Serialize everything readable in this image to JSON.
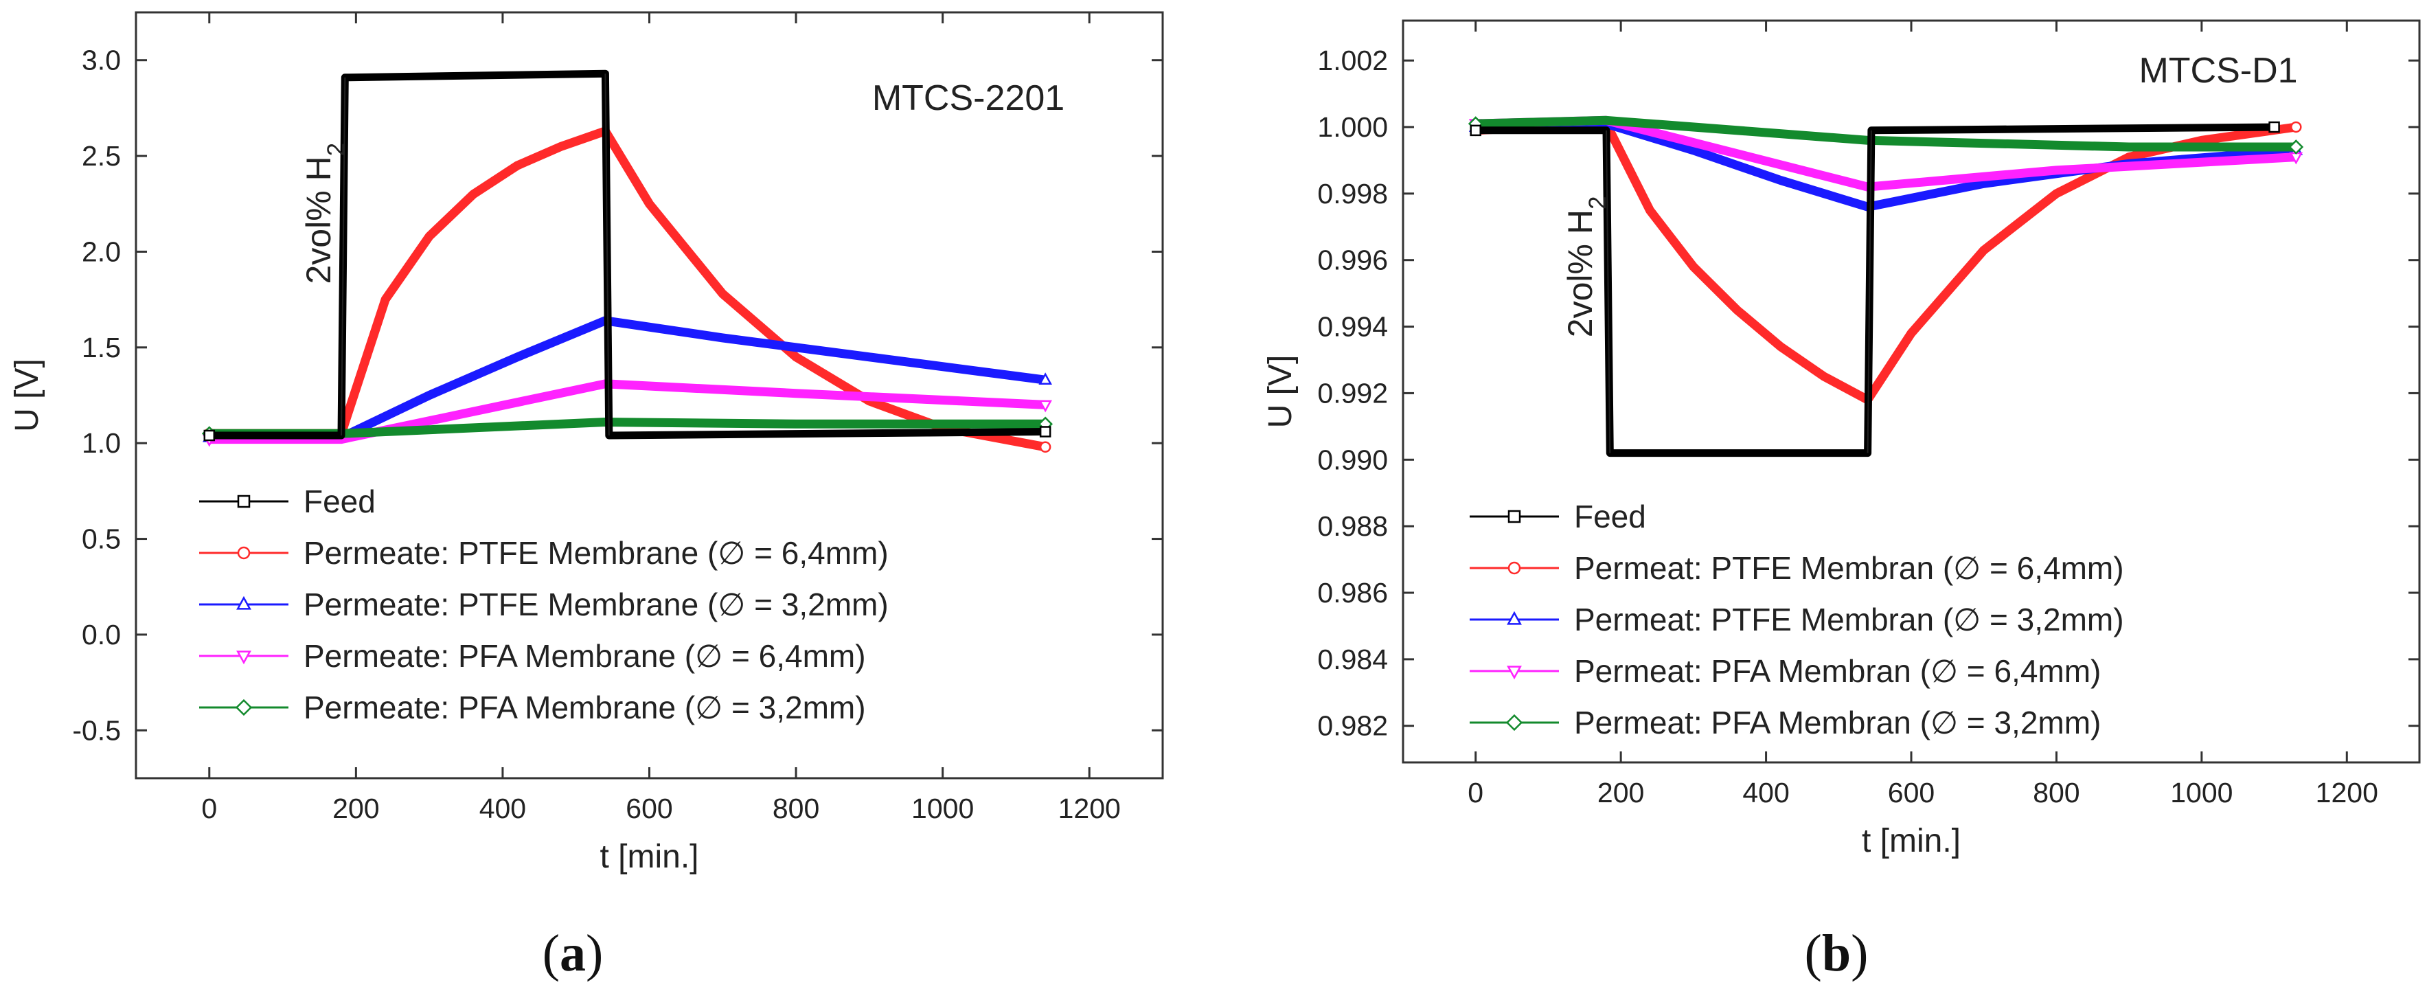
{
  "chart_data": [
    {
      "type": "line",
      "title": "MTCS-2201",
      "xlabel": "t [min.]",
      "ylabel": "U [V]",
      "xlim": [
        -100,
        1300
      ],
      "ylim": [
        -0.75,
        3.25
      ],
      "xticks": [
        0,
        200,
        400,
        600,
        800,
        1000,
        1200
      ],
      "yticks": [
        -0.5,
        0.0,
        0.5,
        1.0,
        1.5,
        2.0,
        2.5,
        3.0
      ],
      "ytick_decimals": 1,
      "annotation": {
        "text": "2vol% H",
        "subscript": "2",
        "x": 165,
        "y": 2.2
      },
      "caption": "a",
      "legend": {
        "position": "bottom-left"
      },
      "series": [
        {
          "name": "Feed",
          "color": "#000000",
          "marker": "square",
          "x": [
            0,
            180,
            185,
            540,
            545,
            1140
          ],
          "y": [
            1.04,
            1.04,
            2.91,
            2.93,
            1.04,
            1.06
          ]
        },
        {
          "name": "Permeate: PTFE Membrane (∅ = 6,4mm)",
          "color": "#ff2a2a",
          "marker": "circle",
          "x": [
            0,
            180,
            240,
            300,
            360,
            420,
            480,
            540,
            600,
            700,
            800,
            900,
            1000,
            1140
          ],
          "y": [
            1.05,
            1.05,
            1.75,
            2.08,
            2.3,
            2.45,
            2.55,
            2.63,
            2.25,
            1.78,
            1.45,
            1.22,
            1.08,
            0.98
          ]
        },
        {
          "name": "Permeate: PTFE Membrane (∅ = 3,2mm)",
          "color": "#1a1aff",
          "marker": "triangle-up",
          "x": [
            0,
            180,
            300,
            420,
            540,
            700,
            900,
            1140
          ],
          "y": [
            1.03,
            1.03,
            1.25,
            1.45,
            1.64,
            1.55,
            1.45,
            1.33
          ]
        },
        {
          "name": "Permeate: PFA Membrane (∅ = 6,4mm)",
          "color": "#ff22ff",
          "marker": "triangle-down",
          "x": [
            0,
            180,
            540,
            800,
            1140
          ],
          "y": [
            1.02,
            1.02,
            1.31,
            1.26,
            1.2
          ]
        },
        {
          "name": "Permeate: PFA Membrane (∅ = 3,2mm)",
          "color": "#138a2d",
          "marker": "diamond",
          "x": [
            0,
            180,
            540,
            800,
            1140
          ],
          "y": [
            1.05,
            1.05,
            1.11,
            1.1,
            1.1
          ]
        }
      ]
    },
    {
      "type": "line",
      "title": "MTCS-D1",
      "xlabel": "t [min.]",
      "ylabel": "U [V]",
      "xlim": [
        -100,
        1300
      ],
      "ylim": [
        0.9809,
        1.0032
      ],
      "xticks": [
        0,
        200,
        400,
        600,
        800,
        1000,
        1200
      ],
      "yticks": [
        0.982,
        0.984,
        0.986,
        0.988,
        0.99,
        0.992,
        0.994,
        0.996,
        0.998,
        1.0,
        1.002
      ],
      "ytick_decimals": 3,
      "annotation": {
        "text": "2vol% H",
        "subscript": "2",
        "x": 160,
        "y": 0.9958
      },
      "caption": "b",
      "legend": {
        "position": "bottom-left"
      },
      "series": [
        {
          "name": "Feed",
          "color": "#000000",
          "marker": "square",
          "x": [
            0,
            180,
            185,
            540,
            545,
            1100
          ],
          "y": [
            0.9999,
            0.9999,
            0.9902,
            0.9902,
            0.9999,
            1.0
          ]
        },
        {
          "name": "Permeat: PTFE Membran (∅ = 6,4mm)",
          "color": "#ff2a2a",
          "marker": "circle",
          "x": [
            0,
            180,
            240,
            300,
            360,
            420,
            480,
            540,
            600,
            700,
            800,
            900,
            1000,
            1130
          ],
          "y": [
            0.9999,
            1.0001,
            0.9975,
            0.9958,
            0.9945,
            0.9934,
            0.9925,
            0.9918,
            0.9938,
            0.9963,
            0.998,
            0.9991,
            0.9996,
            1.0
          ]
        },
        {
          "name": "Permeat: PTFE Membran (∅ = 3,2mm)",
          "color": "#1a1aff",
          "marker": "triangle-up",
          "x": [
            0,
            180,
            300,
            420,
            540,
            700,
            900,
            1130
          ],
          "y": [
            1.0,
            1.0001,
            0.9993,
            0.9984,
            0.9976,
            0.9983,
            0.9989,
            0.9993
          ]
        },
        {
          "name": "Permeat: PFA Membran (∅ = 6,4mm)",
          "color": "#ff22ff",
          "marker": "triangle-down",
          "x": [
            0,
            180,
            540,
            800,
            1130
          ],
          "y": [
            1.0001,
            1.0002,
            0.9982,
            0.9987,
            0.9991
          ]
        },
        {
          "name": "Permeat: PFA Membran (∅ = 3,2mm)",
          "color": "#138a2d",
          "marker": "diamond",
          "x": [
            0,
            180,
            540,
            900,
            1130
          ],
          "y": [
            1.0001,
            1.0002,
            0.9996,
            0.9994,
            0.9994
          ]
        }
      ]
    }
  ]
}
